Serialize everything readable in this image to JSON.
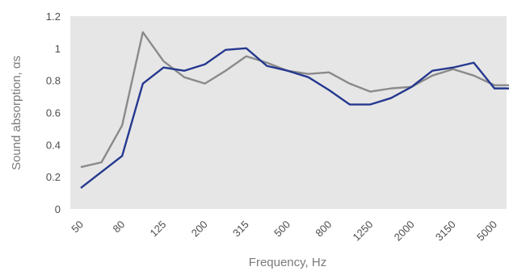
{
  "chart_data": {
    "type": "line",
    "xlabel": "Frequency, Hz",
    "ylabel": "Sound absorption, αs",
    "ylim": [
      0,
      1.2
    ],
    "yticks": [
      0,
      0.2,
      0.4,
      0.6,
      0.8,
      1,
      1.2
    ],
    "ytick_labels": [
      "0",
      "0.2",
      "0.4",
      "0.6",
      "0.8",
      "1",
      "1.2"
    ],
    "grid": false,
    "x": [
      "50",
      "63",
      "80",
      "100",
      "125",
      "160",
      "200",
      "250",
      "315",
      "400",
      "500",
      "630",
      "800",
      "1000",
      "1250",
      "1600",
      "2000",
      "2500",
      "3150",
      "4000",
      "5000",
      "6300"
    ],
    "xtick_labels": [
      "50",
      "80",
      "125",
      "200",
      "315",
      "500",
      "800",
      "1250",
      "2000",
      "3150",
      "5000"
    ],
    "series": [
      {
        "color": "#25388f",
        "values": [
          0.13,
          0.23,
          0.33,
          0.78,
          0.88,
          0.86,
          0.9,
          0.99,
          1.0,
          0.89,
          0.86,
          0.82,
          0.74,
          0.65,
          0.65,
          0.69,
          0.76,
          0.86,
          0.88,
          0.91,
          0.75,
          0.75
        ]
      },
      {
        "color": "#8a8a8a",
        "values": [
          0.26,
          0.29,
          0.52,
          1.1,
          0.92,
          0.82,
          0.78,
          0.86,
          0.95,
          0.91,
          0.86,
          0.84,
          0.85,
          0.78,
          0.73,
          0.75,
          0.76,
          0.83,
          0.87,
          0.83,
          0.77,
          0.77
        ]
      }
    ],
    "colors": {
      "background": "#ffffff",
      "plot_area": "#e6e6e6",
      "text": "#4d4d4d",
      "axis_title": "#7a7a7a"
    }
  }
}
